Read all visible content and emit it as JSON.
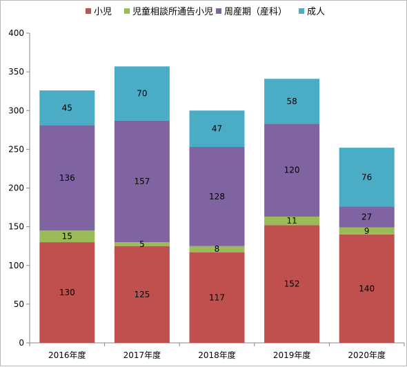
{
  "chart_data": {
    "type": "bar",
    "stacked": true,
    "categories": [
      "2016年度",
      "2017年度",
      "2018年度",
      "2019年度",
      "2020年度"
    ],
    "series": [
      {
        "name": "小児",
        "color": "#c0504d",
        "values": [
          130,
          125,
          117,
          152,
          140
        ]
      },
      {
        "name": "児童相談所通告小児",
        "color": "#9bbb59",
        "values": [
          15,
          5,
          8,
          11,
          9
        ]
      },
      {
        "name": "周産期（産科）",
        "color": "#8064a2",
        "values": [
          136,
          157,
          128,
          120,
          27
        ]
      },
      {
        "name": "成人",
        "color": "#4bacc6",
        "values": [
          45,
          70,
          47,
          58,
          76
        ]
      }
    ],
    "ylim": [
      0,
      400
    ],
    "yticks": [
      0,
      50,
      100,
      150,
      200,
      250,
      300,
      350,
      400
    ],
    "grid": false,
    "legend_position": "top"
  }
}
